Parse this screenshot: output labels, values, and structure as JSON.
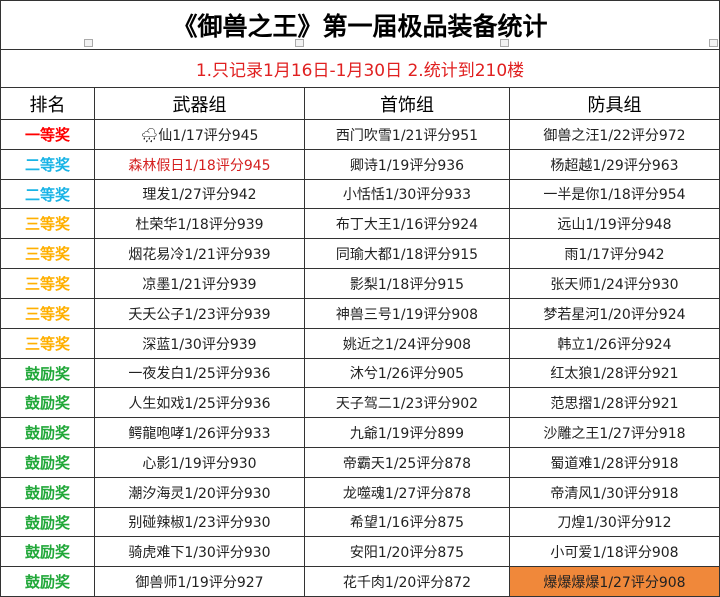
{
  "header": {
    "title": "《御兽之王》第一届极品装备统计",
    "note": "1.只记录1月16日-1月30日   2.统计到210楼"
  },
  "table": {
    "columns": [
      "排名",
      "武器组",
      "首饰组",
      "防具组"
    ],
    "rows": [
      [
        "一等奖",
        "🌧仙1/17评分945",
        "西门吹雪1/21评分951",
        "御兽之汪1/22评分972"
      ],
      [
        "二等奖",
        "森林假日1/18评分945",
        "卿诗1/19评分936",
        "杨超越1/29评分963"
      ],
      [
        "二等奖",
        "理发1/27评分942",
        "小恬恬1/30评分933",
        "一半是你1/18评分954"
      ],
      [
        "三等奖",
        "杜荣华1/18评分939",
        "布丁大王1/16评分924",
        "远山1/19评分948"
      ],
      [
        "三等奖",
        "烟花易冷1/21评分939",
        "同瑜大都1/18评分915",
        "雨1/17评分942"
      ],
      [
        "三等奖",
        "凉墨1/21评分939",
        "影梨1/18评分915",
        "张天师1/24评分930"
      ],
      [
        "三等奖",
        "夭夭公子1/23评分939",
        "神兽三号1/19评分908",
        "梦若星河1/20评分924"
      ],
      [
        "三等奖",
        "深蓝1/30评分939",
        "姚近之1/24评分908",
        "韩立1/26评分924"
      ],
      [
        "鼓励奖",
        "一夜发白1/25评分936",
        "沐兮1/26评分905",
        "红太狼1/28评分921"
      ],
      [
        "鼓励奖",
        "人生如戏1/25评分936",
        "天子驾二1/23评分902",
        "范思摺1/28评分921"
      ],
      [
        "鼓励奖",
        "鳄龍咆哮1/26评分933",
        "九爺1/19评分899",
        "沙雕之王1/27评分918"
      ],
      [
        "鼓励奖",
        "心影1/19评分930",
        "帝霸天1/25评分878",
        "蜀道难1/28评分918"
      ],
      [
        "鼓励奖",
        "潮汐海灵1/20评分930",
        "龙噬魂1/27评分878",
        "帝清风1/30评分918"
      ],
      [
        "鼓励奖",
        "别碰辣椒1/23评分930",
        "希望1/16评分875",
        "刀煌1/30评分912"
      ],
      [
        "鼓励奖",
        "骑虎难下1/30评分930",
        "安阳1/20评分875",
        "小可爱1/18评分908"
      ],
      [
        "鼓励奖",
        "御兽师1/19评分927",
        "花千肉1/20评分872",
        "爆爆爆爆1/27评分908"
      ]
    ]
  }
}
